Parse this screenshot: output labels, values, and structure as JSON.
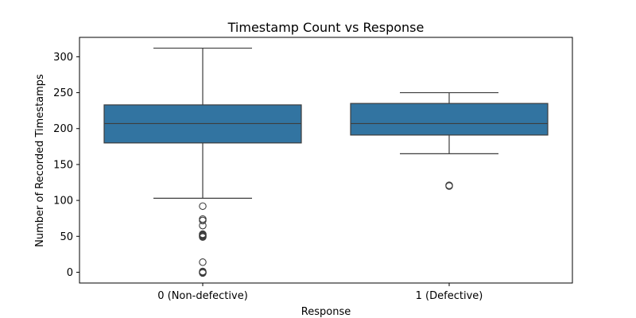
{
  "chart_data": {
    "type": "box",
    "title": "Timestamp Count vs Response",
    "xlabel": "Response",
    "ylabel": "Number of Recorded Timestamps",
    "ylim": [
      -15,
      327
    ],
    "yticks": [
      0,
      50,
      100,
      150,
      200,
      250,
      300
    ],
    "grid": false,
    "legend": "none",
    "categories": [
      "0 (Non-defective)",
      "1 (Defective)"
    ],
    "boxes": [
      {
        "category": "0 (Non-defective)",
        "whisker_low": 103,
        "q1": 180,
        "median": 207,
        "q3": 233,
        "whisker_high": 312,
        "outliers": [
          92,
          74,
          72,
          65,
          53,
          52,
          51,
          50,
          49,
          14,
          1,
          0,
          0,
          -1
        ]
      },
      {
        "category": "1 (Defective)",
        "whisker_low": 165,
        "q1": 191,
        "median": 207,
        "q3": 235,
        "whisker_high": 250,
        "outliers": [
          121,
          120
        ]
      }
    ],
    "colors": {
      "box_fill": "#3274a1",
      "line": "#3d3d3d"
    }
  }
}
